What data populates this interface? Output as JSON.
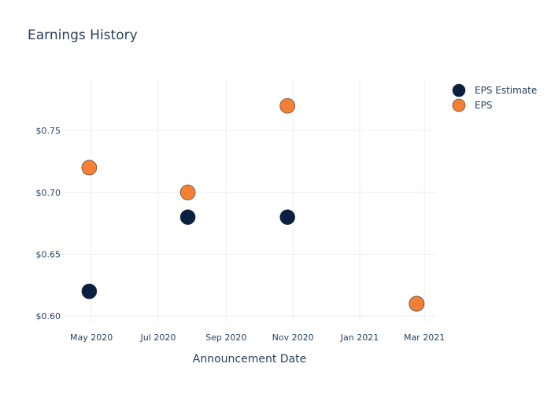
{
  "chart_data": {
    "type": "scatter",
    "title": "Earnings History",
    "xlabel": "Announcement Date",
    "ylabel": "",
    "x_type": "date",
    "xlim": [
      "2020-04-05",
      "2021-03-11"
    ],
    "ylim": [
      0.595,
      0.792
    ],
    "x_ticks": [
      {
        "date": "2020-05-01",
        "label": "May 2020"
      },
      {
        "date": "2020-07-01",
        "label": "Jul 2020"
      },
      {
        "date": "2020-09-01",
        "label": "Sep 2020"
      },
      {
        "date": "2020-11-01",
        "label": "Nov 2020"
      },
      {
        "date": "2021-01-01",
        "label": "Jan 2021"
      },
      {
        "date": "2021-03-01",
        "label": "Mar 2021"
      }
    ],
    "y_ticks": [
      {
        "value": 0.6,
        "label": "$0.60"
      },
      {
        "value": 0.65,
        "label": "$0.65"
      },
      {
        "value": 0.7,
        "label": "$0.70"
      },
      {
        "value": 0.75,
        "label": "$0.75"
      }
    ],
    "grid": true,
    "legend_position": "top-right",
    "series": [
      {
        "name": "EPS Estimate",
        "color": "#0b1f3f",
        "points": [
          {
            "x": "2020-04-29",
            "y": 0.62
          },
          {
            "x": "2020-07-28",
            "y": 0.68
          },
          {
            "x": "2020-10-27",
            "y": 0.68
          },
          {
            "x": "2021-02-22",
            "y": 0.61
          }
        ]
      },
      {
        "name": "EPS",
        "color": "#f58033",
        "points": [
          {
            "x": "2020-04-29",
            "y": 0.72
          },
          {
            "x": "2020-07-28",
            "y": 0.7
          },
          {
            "x": "2020-10-27",
            "y": 0.77
          },
          {
            "x": "2021-02-22",
            "y": 0.61
          }
        ]
      }
    ]
  }
}
